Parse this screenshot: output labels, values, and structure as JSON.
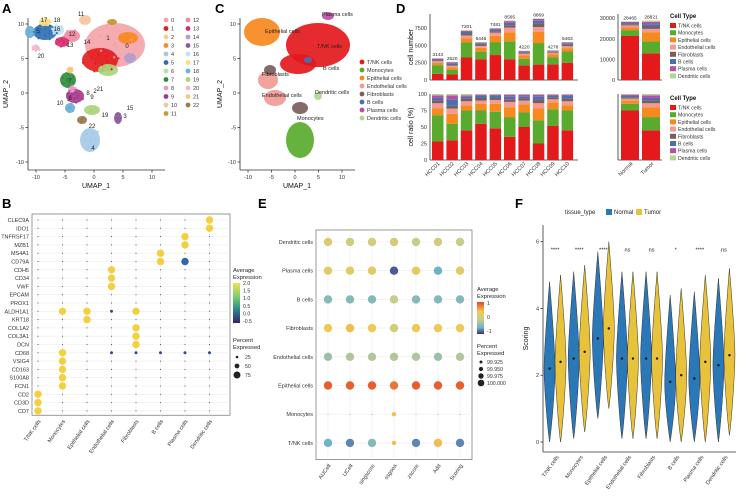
{
  "panels": {
    "A": "A",
    "B": "B",
    "C": "C",
    "D": "D",
    "E": "E",
    "F": "F"
  },
  "colors": {
    "celltype": [
      "#e3191c",
      "#5aaa2e",
      "#f7891f",
      "#f29b95",
      "#7b5d5a",
      "#4a6fb3",
      "#b94fa3",
      "#b3d690"
    ],
    "normal": "#2a78b8",
    "tumor": "#e8c23a"
  },
  "umap": {
    "xlabel": "UMAP_1",
    "ylabel": "UMAP_2",
    "xticks": [
      "-10",
      "-5",
      "0",
      "5",
      "10"
    ],
    "yticks": [
      "-10",
      "-5",
      "0",
      "5",
      "10"
    ],
    "clusters_A": [
      "0",
      "1",
      "2",
      "3",
      "4",
      "5",
      "6",
      "7",
      "8",
      "9",
      "10",
      "11",
      "12",
      "13",
      "14",
      "15",
      "16",
      "17",
      "18",
      "19",
      "20",
      "21",
      "22"
    ],
    "cluster_colors": [
      "#f4a3a8",
      "#e3191c",
      "#f7d08a",
      "#f7891f",
      "#a3c9e6",
      "#2e6db4",
      "#b5e0a8",
      "#2e8b3c",
      "#e89ac7",
      "#a6368c",
      "#f4c6a0",
      "#c49a3a",
      "#f08ca0",
      "#d72a6e",
      "#b39cd0",
      "#8b5a9e",
      "#bfe3f0",
      "#fbdd7e",
      "#6ab0d9",
      "#aad57a",
      "#f5b8d4",
      "#f7c97a",
      "#9a7b4f"
    ],
    "legend_C": [
      "T/NK cells",
      "Monocytes",
      "Epithelial cells",
      "Endothelial cells",
      "Fibroblasts",
      "B cells",
      "Plasma cells",
      "Dendritic cells"
    ],
    "labels_C": [
      "Plasma cells",
      "Epithelial cells",
      "T/NK cells",
      "B cells",
      "Fibroblasts",
      "Endothelial cells",
      "Dendritic cells",
      "Monocytes"
    ],
    "labels_A": [
      "17",
      "18",
      "5",
      "16",
      "13",
      "20",
      "11",
      "14",
      "1",
      "0",
      "12",
      "7",
      "8",
      "21",
      "9",
      "10",
      "19",
      "22",
      "6",
      "2",
      "3",
      "15",
      "4"
    ]
  },
  "chart_data": [
    {
      "panel": "D-top",
      "type": "bar",
      "ylabel": "cell number",
      "stacking": "stacked",
      "categories": [
        "HCC01",
        "HCC02",
        "HCC03",
        "HCC04",
        "HCC05",
        "HCC06",
        "HCC07",
        "HCC08",
        "HCC09",
        "HCC10"
      ],
      "totals": [
        3143,
        2620,
        7201,
        5446,
        7481,
        8565,
        4220,
        8869,
        4278,
        5463
      ],
      "total_labels": [
        "3143",
        "2620",
        "7201",
        "5446",
        "7481",
        "8565",
        "4220",
        "8869",
        "4278",
        "5463"
      ],
      "ylim": [
        0,
        9500
      ],
      "yticks": [
        "0",
        "2500",
        "5000",
        "7500"
      ],
      "series_names": [
        "T/NK cells",
        "Monocytes",
        "Epithelial cells",
        "Endothelial cells",
        "Fibroblasts",
        "B cells",
        "Plasma cells",
        "Dendritic cells"
      ]
    },
    {
      "panel": "D-top-right",
      "type": "bar",
      "stacking": "stacked",
      "categories": [
        "Normal",
        "Tumor"
      ],
      "totals": [
        28465,
        28821
      ],
      "total_labels": [
        "28465",
        "28821"
      ],
      "ylim": [
        0,
        32000
      ],
      "yticks": [
        "0",
        "10000",
        "20000",
        "30000"
      ]
    },
    {
      "panel": "D-bottom",
      "type": "bar",
      "ylabel": "cell ratio (%)",
      "stacking": "percent",
      "categories": [
        "HCC01",
        "HCC02",
        "HCC03",
        "HCC04",
        "HCC05",
        "HCC06",
        "HCC07",
        "HCC08",
        "HCC09",
        "HCC10",
        "Normal",
        "Tumor"
      ],
      "yticks": [
        "0",
        "25",
        "50",
        "75",
        "100"
      ],
      "series": [
        {
          "name": "T/NK cells",
          "values": [
            28,
            30,
            45,
            55,
            48,
            35,
            50,
            25,
            52,
            45,
            75,
            45
          ]
        },
        {
          "name": "Monocytes",
          "values": [
            40,
            25,
            30,
            20,
            25,
            30,
            22,
            35,
            25,
            30,
            10,
            20
          ]
        },
        {
          "name": "Epithelial cells",
          "values": [
            10,
            15,
            8,
            10,
            12,
            15,
            12,
            18,
            10,
            8,
            5,
            15
          ]
        },
        {
          "name": "Endothelial cells",
          "values": [
            8,
            8,
            6,
            5,
            6,
            8,
            6,
            8,
            5,
            6,
            3,
            6
          ]
        },
        {
          "name": "Fibroblasts",
          "values": [
            4,
            4,
            4,
            4,
            3,
            4,
            3,
            5,
            3,
            4,
            2,
            4
          ]
        },
        {
          "name": "B cells",
          "values": [
            4,
            10,
            3,
            3,
            3,
            4,
            3,
            5,
            2,
            4,
            2,
            4
          ]
        },
        {
          "name": "Plasma cells",
          "values": [
            4,
            6,
            2,
            2,
            2,
            3,
            3,
            3,
            2,
            2,
            2,
            4
          ]
        },
        {
          "name": "Dendritic cells",
          "values": [
            2,
            2,
            2,
            1,
            1,
            1,
            1,
            1,
            1,
            1,
            1,
            2
          ]
        }
      ]
    },
    {
      "panel": "B",
      "type": "dotplot",
      "genes": [
        "CLEC9A",
        "IDO1",
        "TNFRSF17",
        "MZB1",
        "MS4A1",
        "CD79A",
        "CDH5",
        "CD34",
        "VWF",
        "EPCAM",
        "PROX1",
        "ALDH1A1",
        "KRT18",
        "COL1A2",
        "COL3A1",
        "DCN",
        "CD68",
        "VSIG4",
        "CD163",
        "S100A8",
        "FCN1",
        "CD2",
        "CD3D",
        "CD7"
      ],
      "cell_types": [
        "T/NK cells",
        "Monocytes",
        "Epithelial cells",
        "Endothelial cells",
        "Fibroblasts",
        "B cells",
        "Plasma cells",
        "Dendritic cells"
      ],
      "highlight": [
        [
          0,
          7
        ],
        [
          1,
          7
        ],
        [
          2,
          6
        ],
        [
          3,
          6
        ],
        [
          4,
          5
        ],
        [
          5,
          5
        ],
        [
          5,
          6
        ],
        [
          6,
          3
        ],
        [
          7,
          3
        ],
        [
          8,
          3
        ],
        [
          11,
          2
        ],
        [
          12,
          2
        ],
        [
          11,
          1
        ],
        [
          11,
          4
        ],
        [
          13,
          4
        ],
        [
          14,
          4
        ],
        [
          15,
          4
        ],
        [
          16,
          1
        ],
        [
          17,
          1
        ],
        [
          18,
          1
        ],
        [
          19,
          1
        ],
        [
          20,
          1
        ],
        [
          21,
          0
        ],
        [
          22,
          0
        ],
        [
          23,
          0
        ]
      ],
      "legend_color_title": "Average Expression",
      "legend_color_ticks": [
        "2.0",
        "1.5",
        "1.0",
        "0.5",
        "0.0",
        "-0.5"
      ],
      "legend_size_title": "Percent Expressed",
      "legend_size_ticks": [
        "25",
        "50",
        "75"
      ]
    },
    {
      "panel": "E",
      "type": "dotplot",
      "methods": [
        "AUCell",
        "UCell",
        "singscore",
        "ssgsea",
        "zscore",
        "Add",
        "Scoring"
      ],
      "cell_types": [
        "Dendritic cells",
        "Plasma cells",
        "B cells",
        "Fibroblasts",
        "Endothelial cells",
        "Epithelial cells",
        "Monocytes",
        "T/NK cells"
      ],
      "value_scale": [
        -1,
        1
      ],
      "values": [
        [
          0.2,
          0.1,
          0.1,
          0.1,
          0.0,
          0.1,
          0.0
        ],
        [
          0.3,
          0.3,
          0.3,
          -0.8,
          0.3,
          -0.4,
          0.3
        ],
        [
          -0.3,
          -0.3,
          -0.3,
          0.0,
          -0.3,
          -0.3,
          -0.3
        ],
        [
          0.4,
          0.5,
          0.4,
          0.1,
          0.4,
          0.4,
          0.4
        ],
        [
          -0.2,
          -0.1,
          -0.1,
          -0.1,
          -0.1,
          -0.2,
          -0.1
        ],
        [
          0.9,
          0.9,
          0.9,
          0.8,
          0.9,
          0.9,
          0.9
        ],
        [
          null,
          null,
          null,
          0.5,
          null,
          null,
          null
        ],
        [
          -0.4,
          -0.6,
          -0.3,
          0.5,
          -0.6,
          0.5,
          -0.6
        ]
      ],
      "legend_color_title": "Average Expression",
      "legend_color_ticks": [
        "1",
        "0",
        "-1"
      ],
      "legend_size_title": "Percent Expressed",
      "legend_size_ticks": [
        "99.925",
        "99.950",
        "99.975",
        "100.000"
      ]
    },
    {
      "panel": "F",
      "type": "violin",
      "ylabel": "Scoring",
      "legend_title": "tissue_type",
      "groups": [
        "Normal",
        "Tumor"
      ],
      "categories": [
        "T/NK cells",
        "Monocytes",
        "Epithelial cells",
        "Endothelial cells",
        "Fibroblasts",
        "B cells",
        "Plasma cells",
        "Dendritic cells"
      ],
      "significance": [
        "****",
        "****",
        "****",
        "ns",
        "ns",
        "*",
        "****",
        "ns"
      ],
      "medians_normal": [
        2.2,
        2.5,
        3.1,
        2.5,
        2.5,
        1.8,
        1.9,
        2.3
      ],
      "medians_tumor": [
        2.4,
        2.7,
        3.4,
        2.5,
        2.5,
        2.0,
        2.4,
        2.6
      ],
      "ylim": [
        -0.3,
        6.5
      ],
      "yticks": [
        "0",
        "2",
        "4",
        "6"
      ]
    }
  ]
}
